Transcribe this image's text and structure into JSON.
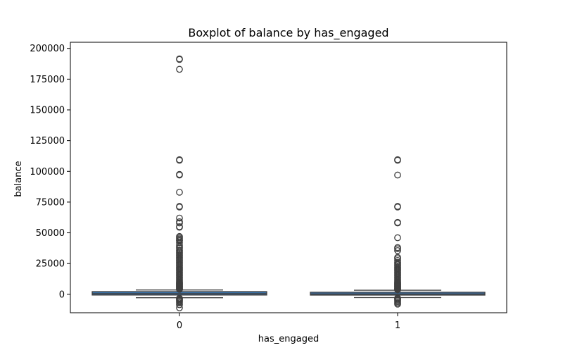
{
  "chart_data": {
    "type": "box",
    "title": "Boxplot of balance by has_engaged",
    "xlabel": "has_engaged",
    "ylabel": "balance",
    "ylim": [
      -15000,
      205000
    ],
    "yticks": [
      0,
      25000,
      50000,
      75000,
      100000,
      125000,
      150000,
      175000,
      200000
    ],
    "categories": [
      "0",
      "1"
    ],
    "grid": false,
    "colors": {
      "box_fill": "#3a75af",
      "box_edge": "#3f3f3f",
      "median": "#3f3f3f",
      "whisker": "#3f3f3f",
      "flier_edge": "#3f3f3f"
    },
    "boxes": [
      {
        "category": "0",
        "whisker_low": -2800,
        "q1": 80,
        "median": 480,
        "q3": 1500,
        "whisker_high": 3500,
        "outliers": [
          191500,
          191000,
          183000,
          109500,
          109000,
          97500,
          97000,
          83000,
          71500,
          71000,
          62000,
          59000,
          58000,
          55000,
          54500,
          47000,
          46000,
          45000,
          44000,
          43500,
          42000,
          40000,
          38500,
          37500,
          36000,
          35000,
          34000,
          33000,
          32000,
          31000,
          30000,
          29000,
          28000,
          27000,
          26000,
          25000,
          24000,
          23000,
          22000,
          21000,
          20000,
          19000,
          18000,
          17000,
          16000,
          15000,
          14000,
          13000,
          12000,
          11000,
          10000,
          9500,
          9000,
          8500,
          8000,
          7500,
          7000,
          6500,
          6000,
          5500,
          5000,
          4500,
          4000,
          -3200,
          -3800,
          -4500,
          -5200,
          -6000,
          -7000,
          -8500,
          -11000
        ]
      },
      {
        "category": "1",
        "whisker_low": -2700,
        "q1": 30,
        "median": 270,
        "q3": 1000,
        "whisker_high": 3300,
        "outliers": [
          109500,
          109000,
          97000,
          71500,
          71000,
          58500,
          58000,
          46000,
          38000,
          37000,
          35500,
          30000,
          29000,
          27500,
          26000,
          25000,
          24000,
          23000,
          22000,
          21000,
          20000,
          19000,
          18000,
          17000,
          16000,
          15000,
          14000,
          13000,
          12000,
          11000,
          10000,
          9500,
          9000,
          8500,
          8000,
          7500,
          7000,
          6500,
          6000,
          5500,
          5000,
          4500,
          4000,
          3700,
          -3000,
          -3500,
          -4200,
          -5000,
          -6000,
          -7000,
          -8000
        ]
      }
    ]
  }
}
